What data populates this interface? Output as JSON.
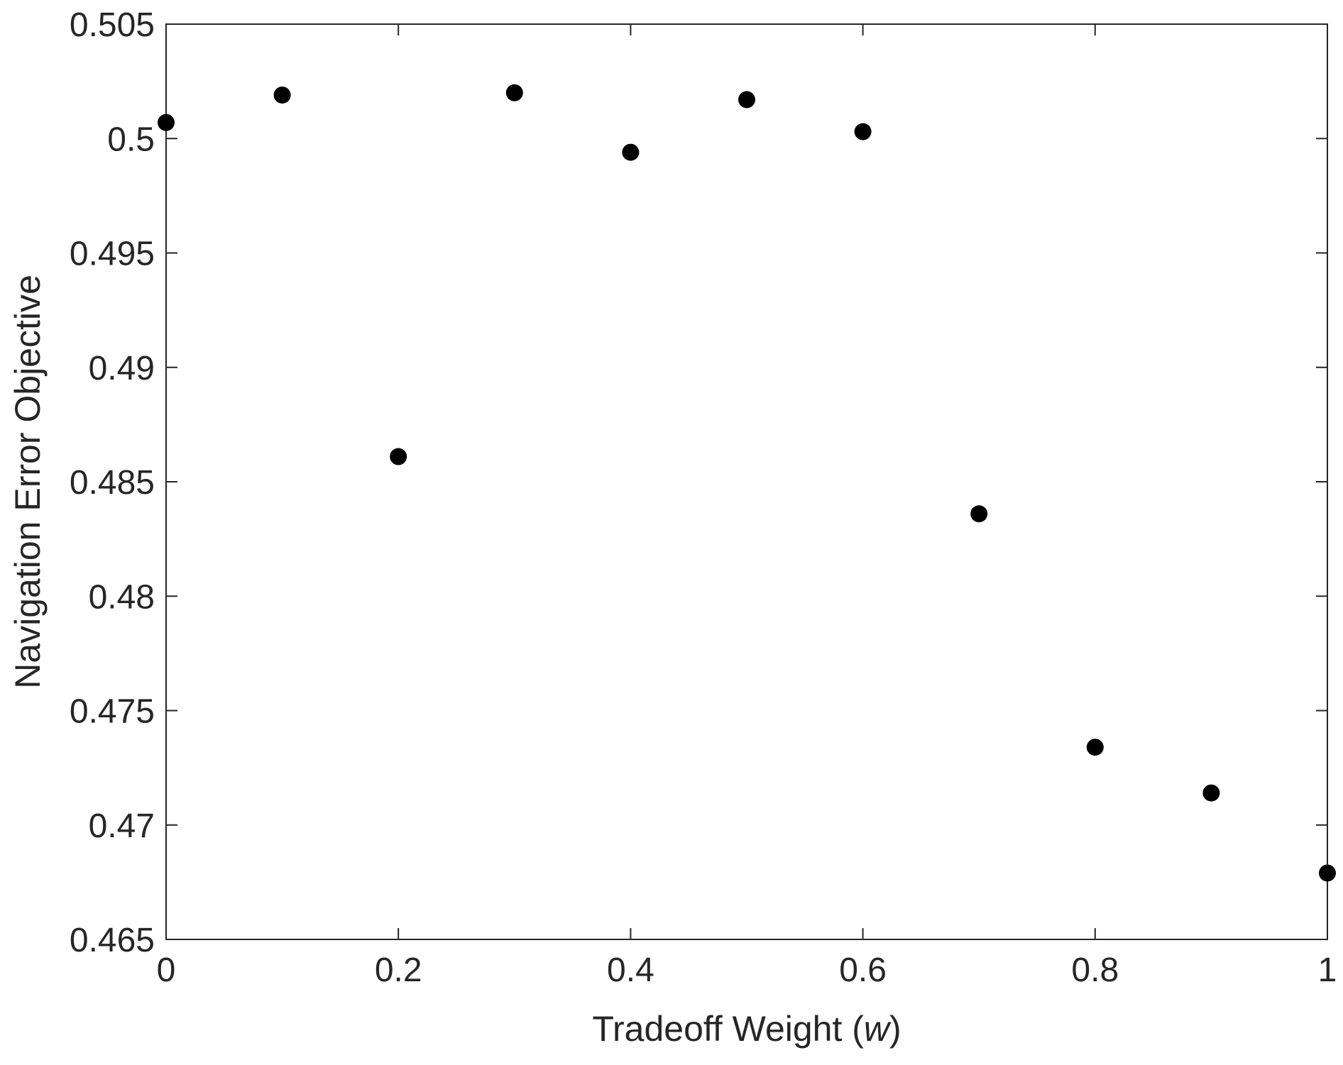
{
  "chart_data": {
    "type": "scatter",
    "title": "",
    "xlabel": "Tradeoff Weight (",
    "xlabel_var": "w",
    "xlabel_close": ")",
    "ylabel": "Navigation Error Objective",
    "xlim": [
      0,
      1
    ],
    "ylim": [
      0.465,
      0.505
    ],
    "xticks": [
      0,
      0.2,
      0.4,
      0.6,
      0.8,
      1
    ],
    "xtick_labels": [
      "0",
      "0.2",
      "0.4",
      "0.6",
      "0.8",
      "1"
    ],
    "yticks": [
      0.465,
      0.47,
      0.475,
      0.48,
      0.485,
      0.49,
      0.495,
      0.5,
      0.505
    ],
    "ytick_labels": [
      "0.465",
      "0.47",
      "0.475",
      "0.48",
      "0.485",
      "0.49",
      "0.495",
      "0.5",
      "0.505"
    ],
    "grid": false,
    "marker_color": "#000000",
    "axis_color": "#262626",
    "points": [
      {
        "x": 0.0,
        "y": 0.5007
      },
      {
        "x": 0.1,
        "y": 0.5019
      },
      {
        "x": 0.2,
        "y": 0.4861
      },
      {
        "x": 0.3,
        "y": 0.502
      },
      {
        "x": 0.4,
        "y": 0.4994
      },
      {
        "x": 0.5,
        "y": 0.5017
      },
      {
        "x": 0.6,
        "y": 0.5003
      },
      {
        "x": 0.7,
        "y": 0.4836
      },
      {
        "x": 0.8,
        "y": 0.4734
      },
      {
        "x": 0.9,
        "y": 0.4714
      },
      {
        "x": 1.0,
        "y": 0.4679
      }
    ]
  }
}
